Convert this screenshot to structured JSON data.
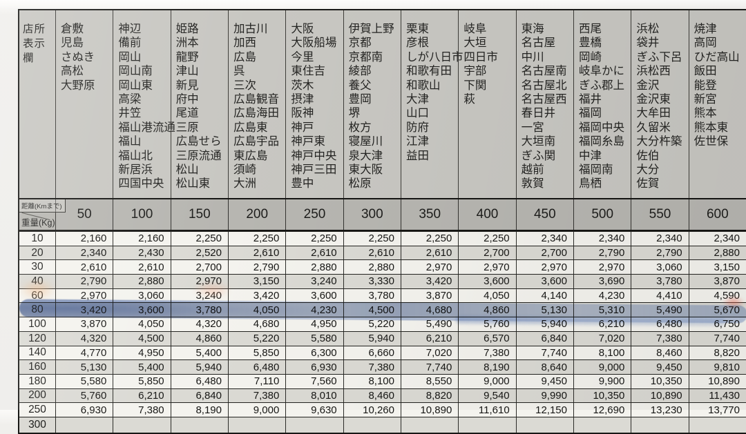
{
  "header": {
    "store_label_line1": "店所",
    "store_label_line2": "表示欄",
    "distance_label": "距離(Kmまで)",
    "weight_label": "重量(Kg)"
  },
  "accent_colors": {
    "highlighter_blue": "#6f8fc4",
    "smudge_orange": "#f0ac70",
    "paper_gray": "#c8c7c2",
    "header_gray": "#b7b6b1"
  },
  "columns": [
    {
      "distance": "50",
      "stations": [
        "倉敷",
        "児島",
        "さぬき",
        "高松",
        "大野原"
      ]
    },
    {
      "distance": "100",
      "stations": [
        "神辺",
        "備前",
        "岡山",
        "岡山南",
        "岡山東",
        "高梁",
        "井笠",
        "福山港流通",
        "福山",
        "福山北",
        "新居浜",
        "四国中央"
      ]
    },
    {
      "distance": "150",
      "stations": [
        "姫路",
        "洲本",
        "龍野",
        "津山",
        "新見",
        "府中",
        "尾道",
        "三原",
        "広島せら",
        "三原流通",
        "松山",
        "松山東"
      ]
    },
    {
      "distance": "200",
      "stations": [
        "加古川",
        "加西",
        "広島",
        "呉",
        "三次",
        "広島観音",
        "広島海田",
        "広島東",
        "広島宇品",
        "東広島",
        "須崎",
        "大洲"
      ]
    },
    {
      "distance": "250",
      "stations": [
        "大阪",
        "大阪船場",
        "今里",
        "東住吉",
        "茨木",
        "摂津",
        "阪神",
        "神戸",
        "神戸東",
        "神戸中央",
        "神戸三田",
        "豊中"
      ]
    },
    {
      "distance": "300",
      "stations": [
        "伊賀上野",
        "京都",
        "京都南",
        "綾部",
        "養父",
        "豊岡",
        "堺",
        "枚方",
        "寝屋川",
        "泉大津",
        "東大阪",
        "松原"
      ]
    },
    {
      "distance": "350",
      "stations": [
        "栗東",
        "彦根",
        "しが八日市",
        "和歌有田",
        "和歌山",
        "大津",
        "山口",
        "防府",
        "江津",
        "益田"
      ]
    },
    {
      "distance": "400",
      "stations": [
        "岐阜",
        "大垣",
        "四日市",
        "宇部",
        "下関",
        "萩"
      ]
    },
    {
      "distance": "450",
      "stations": [
        "東海",
        "名古屋",
        "中川",
        "名古屋南",
        "名古屋北",
        "名古屋西",
        "春日井",
        "一宮",
        "大垣南",
        "ぎふ関",
        "越前",
        "敦賀"
      ]
    },
    {
      "distance": "500",
      "stations": [
        "西尾",
        "豊橋",
        "岡崎",
        "岐阜かに",
        "ぎふ郡上",
        "福井",
        "福岡",
        "福岡中央",
        "福岡糸島",
        "中津",
        "福岡南",
        "鳥栖"
      ]
    },
    {
      "distance": "550",
      "stations": [
        "浜松",
        "袋井",
        "ぎふ下呂",
        "浜松西",
        "金沢",
        "金沢東",
        "大牟田",
        "久留米",
        "大分杵築",
        "佐伯",
        "大分",
        "佐賀"
      ]
    },
    {
      "distance": "600",
      "stations": [
        "焼津",
        "高岡",
        "ひだ高山",
        "飯田",
        "能登",
        "新宮",
        "熊本",
        "熊本東",
        "佐世保"
      ]
    }
  ],
  "rates": [
    {
      "weight": "10",
      "values": [
        "2,160",
        "2,160",
        "2,250",
        "2,250",
        "2,250",
        "2,250",
        "2,250",
        "2,250",
        "2,340",
        "2,340",
        "2,340",
        "2,340"
      ]
    },
    {
      "weight": "20",
      "values": [
        "2,340",
        "2,430",
        "2,520",
        "2,610",
        "2,610",
        "2,610",
        "2,610",
        "2,700",
        "2,700",
        "2,790",
        "2,790",
        "2,880"
      ]
    },
    {
      "weight": "30",
      "values": [
        "2,610",
        "2,610",
        "2,700",
        "2,790",
        "2,880",
        "2,880",
        "2,970",
        "2,970",
        "2,970",
        "2,970",
        "3,060",
        "3,150"
      ]
    },
    {
      "weight": "40",
      "values": [
        "2,790",
        "2,880",
        "2,970",
        "3,150",
        "3,240",
        "3,330",
        "3,420",
        "3,600",
        "3,600",
        "3,690",
        "3,780",
        "3,870"
      ]
    },
    {
      "weight": "60",
      "values": [
        "2,970",
        "3,060",
        "3,240",
        "3,420",
        "3,600",
        "3,780",
        "3,870",
        "4,050",
        "4,140",
        "4,230",
        "4,410",
        "4,590"
      ]
    },
    {
      "weight": "80",
      "values": [
        "3,420",
        "3,600",
        "3,780",
        "4,050",
        "4,230",
        "4,500",
        "4,680",
        "4,860",
        "5,130",
        "5,310",
        "5,490",
        "5,670"
      ],
      "highlighted": true
    },
    {
      "weight": "100",
      "values": [
        "3,870",
        "4,050",
        "4,320",
        "4,680",
        "4,950",
        "5,220",
        "5,490",
        "5,760",
        "5,940",
        "6,210",
        "6,480",
        "6,750"
      ]
    },
    {
      "weight": "120",
      "values": [
        "4,320",
        "4,500",
        "4,860",
        "5,220",
        "5,580",
        "5,940",
        "6,210",
        "6,570",
        "6,840",
        "7,020",
        "7,380",
        "7,740"
      ]
    },
    {
      "weight": "140",
      "values": [
        "4,770",
        "4,950",
        "5,400",
        "5,850",
        "6,300",
        "6,660",
        "7,020",
        "7,380",
        "7,740",
        "8,100",
        "8,460",
        "8,820"
      ]
    },
    {
      "weight": "160",
      "values": [
        "5,130",
        "5,400",
        "5,940",
        "6,480",
        "6,930",
        "7,380",
        "7,740",
        "8,190",
        "8,640",
        "9,000",
        "9,450",
        "9,810"
      ]
    },
    {
      "weight": "180",
      "values": [
        "5,580",
        "5,850",
        "6,480",
        "7,110",
        "7,560",
        "8,100",
        "8,550",
        "9,000",
        "9,450",
        "9,900",
        "10,350",
        "10,890"
      ]
    },
    {
      "weight": "200",
      "values": [
        "5,760",
        "6,210",
        "6,840",
        "7,380",
        "8,010",
        "8,460",
        "8,820",
        "9,540",
        "9,990",
        "10,350",
        "10,890",
        "11,430"
      ]
    },
    {
      "weight": "250",
      "values": [
        "6,930",
        "7,380",
        "8,190",
        "9,000",
        "9,630",
        "10,260",
        "10,890",
        "11,610",
        "12,150",
        "12,690",
        "13,230",
        "13,770"
      ]
    },
    {
      "weight": "300",
      "values": [
        "",
        "",
        "",
        "",
        "",
        "",
        "",
        "",
        "",
        "",
        "",
        ""
      ],
      "partial": true
    }
  ]
}
